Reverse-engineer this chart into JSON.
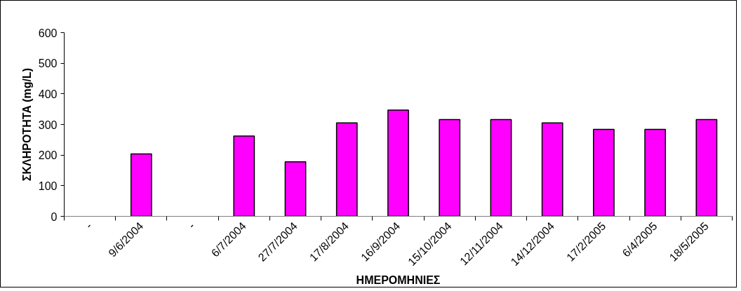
{
  "chart_data": {
    "type": "bar",
    "xlabel": "ΗΜΕΡΟΜΗΝΙΕΣ",
    "ylabel": "ΣΚΛΗΡΟΤΗΤΑ (mg/L)",
    "categories": [
      "-",
      "9/6/2004",
      "-",
      "6/7/2004",
      "27/7/2004",
      "17/8/2004",
      "16/9/2004",
      "15/10/2004",
      "12/11/2004",
      "14/12/2004",
      "17/2/2005",
      "6/4/2005",
      "18/5/2005"
    ],
    "values": [
      null,
      204,
      null,
      262,
      178,
      305,
      347,
      316,
      316,
      305,
      284,
      284,
      316
    ],
    "color": "#ff00ff",
    "ylim": [
      0,
      600
    ],
    "yticks": [
      0,
      100,
      200,
      300,
      400,
      500,
      600
    ],
    "grid": false
  }
}
